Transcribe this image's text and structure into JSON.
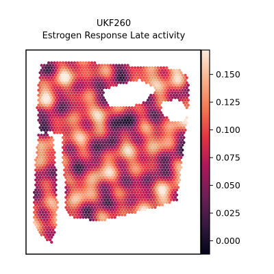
{
  "chart_data": {
    "type": "heatmap",
    "title": "UKF260",
    "subtitle": "Estrogen Response Late activity",
    "xlabel": "",
    "ylabel": "",
    "grid": false,
    "colormap": "rocket",
    "colorbar": {
      "vmin": -0.012,
      "vmax": 0.172,
      "ticks": [
        0.0,
        0.025,
        0.05,
        0.075,
        0.1,
        0.125,
        0.15
      ],
      "tick_labels": [
        "0.000",
        "0.025",
        "0.050",
        "0.075",
        "0.100",
        "0.125",
        "0.150"
      ]
    },
    "value_range_shown": [
      -0.01,
      0.17
    ],
    "colormap_stops": [
      "#03051a",
      "#35193e",
      "#701f57",
      "#ad1759",
      "#e13342",
      "#f37651",
      "#f6b48f",
      "#faebdd"
    ]
  }
}
